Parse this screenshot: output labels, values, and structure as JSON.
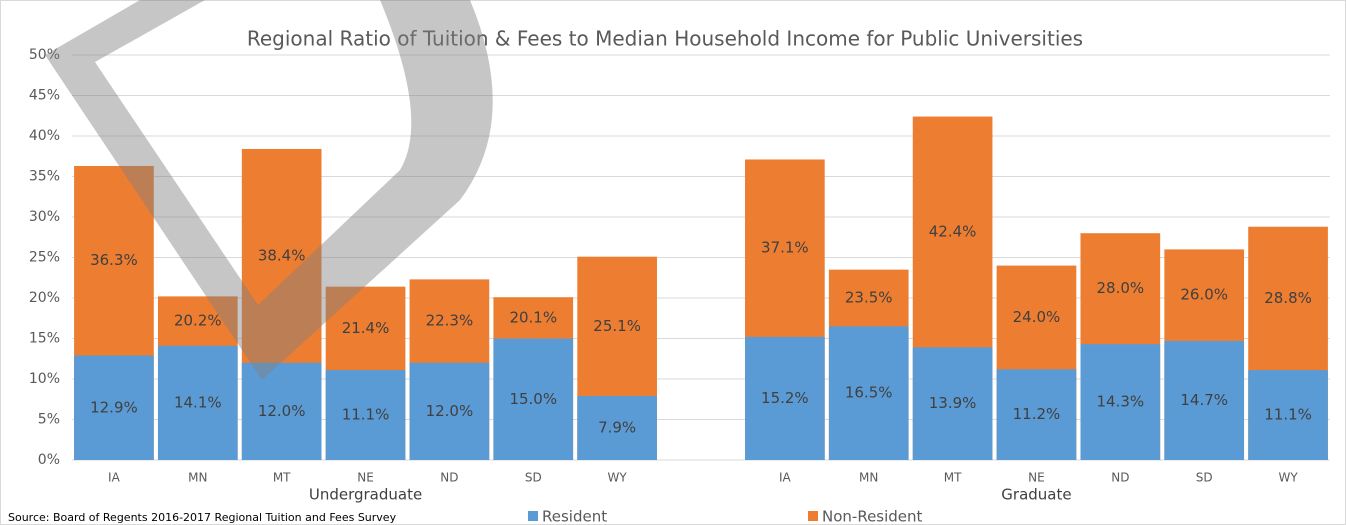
{
  "chart_data": {
    "type": "bar",
    "title": "Regional Ratio of Tuition & Fees to Median Household Income for Public Universities",
    "categories": [
      "IA",
      "MN",
      "MT",
      "NE",
      "ND",
      "SD",
      "WY",
      null,
      "IA",
      "MN",
      "MT",
      "NE",
      "ND",
      "SD",
      "WY"
    ],
    "groups": [
      {
        "name": "Undergraduate",
        "start": 0,
        "end": 6
      },
      {
        "name": "Graduate",
        "start": 8,
        "end": 14
      }
    ],
    "series": [
      {
        "name": "Non-Resident",
        "color": "#ed7d31",
        "values": [
          36.3,
          20.2,
          38.4,
          21.4,
          22.3,
          20.1,
          25.1,
          null,
          37.1,
          23.5,
          42.4,
          24.0,
          28.0,
          26.0,
          28.8
        ],
        "value_labels": [
          "36.3%",
          "20.2%",
          "38.4%",
          "21.4%",
          "22.3%",
          "20.1%",
          "25.1%",
          null,
          "37.1%",
          "23.5%",
          "42.4%",
          "24.0%",
          "28.0%",
          "26.0%",
          "28.8%"
        ]
      },
      {
        "name": "Resident",
        "color": "#5b9bd5",
        "values": [
          12.9,
          14.1,
          12.0,
          11.1,
          12.0,
          15.0,
          7.9,
          null,
          15.2,
          16.5,
          13.9,
          11.2,
          14.3,
          14.7,
          11.1
        ],
        "value_labels": [
          "12.9%",
          "14.1%",
          "12.0%",
          "11.1%",
          "12.0%",
          "15.0%",
          "7.9%",
          null,
          "15.2%",
          "16.5%",
          "13.9%",
          "11.2%",
          "14.3%",
          "14.7%",
          "11.1%"
        ]
      }
    ],
    "ylim": [
      0,
      50
    ],
    "yticks": [
      {
        "value": 0,
        "label": "0%"
      },
      {
        "value": 5,
        "label": "5%"
      },
      {
        "value": 10,
        "label": "10%"
      },
      {
        "value": 15,
        "label": "15%"
      },
      {
        "value": 20,
        "label": "20%"
      },
      {
        "value": 25,
        "label": "25%"
      },
      {
        "value": 30,
        "label": "30%"
      },
      {
        "value": 35,
        "label": "35%"
      },
      {
        "value": 40,
        "label": "40%"
      },
      {
        "value": 45,
        "label": "45%"
      },
      {
        "value": 50,
        "label": "50%"
      }
    ],
    "grid": true,
    "source": "Source: Board of Regents 2016-2017 Regional Tuition and Fees Survey"
  }
}
